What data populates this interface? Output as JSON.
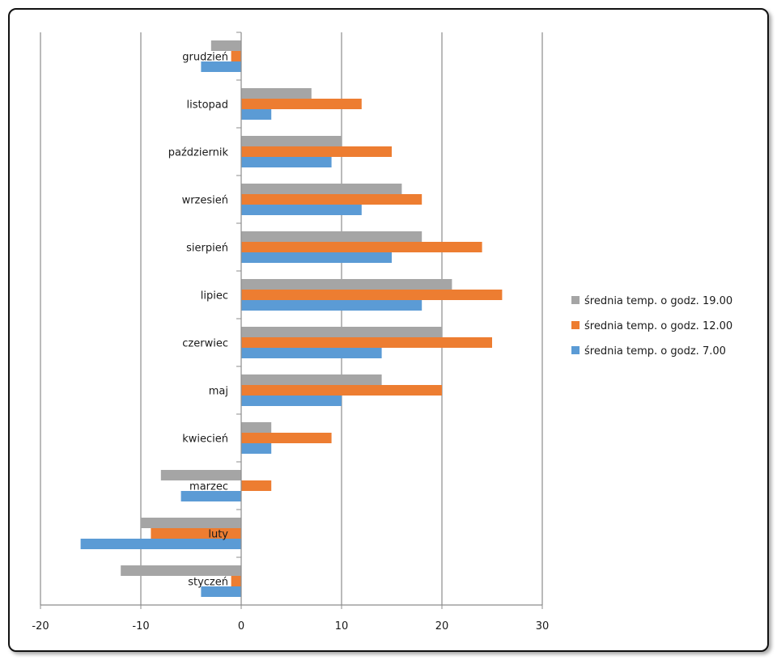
{
  "chart_data": {
    "type": "bar",
    "orientation": "horizontal",
    "categories": [
      "styczeń",
      "luty",
      "marzec",
      "kwiecień",
      "maj",
      "czerwiec",
      "lipiec",
      "sierpień",
      "wrzesień",
      "październik",
      "listopad",
      "grudzień"
    ],
    "series": [
      {
        "name": "średnia temp. o godz. 7.00",
        "color": "#5b9bd5",
        "values": [
          -4,
          -16,
          -6,
          3,
          10,
          14,
          18,
          15,
          12,
          9,
          3,
          -4
        ]
      },
      {
        "name": "średnia temp. o godz. 12.00",
        "color": "#ed7d31",
        "values": [
          -1,
          -9,
          3,
          9,
          20,
          25,
          26,
          24,
          18,
          15,
          12,
          -1
        ]
      },
      {
        "name": "średnia temp. o godz. 19.00",
        "color": "#a5a5a5",
        "values": [
          -12,
          -10,
          -8,
          3,
          14,
          20,
          21,
          18,
          16,
          10,
          7,
          -3
        ]
      }
    ],
    "xlim": [
      -20,
      30
    ],
    "xticks": [
      -20,
      -10,
      0,
      10,
      20,
      30
    ],
    "grid": true,
    "legend_position": "right",
    "title": "",
    "xlabel": "",
    "ylabel": ""
  }
}
